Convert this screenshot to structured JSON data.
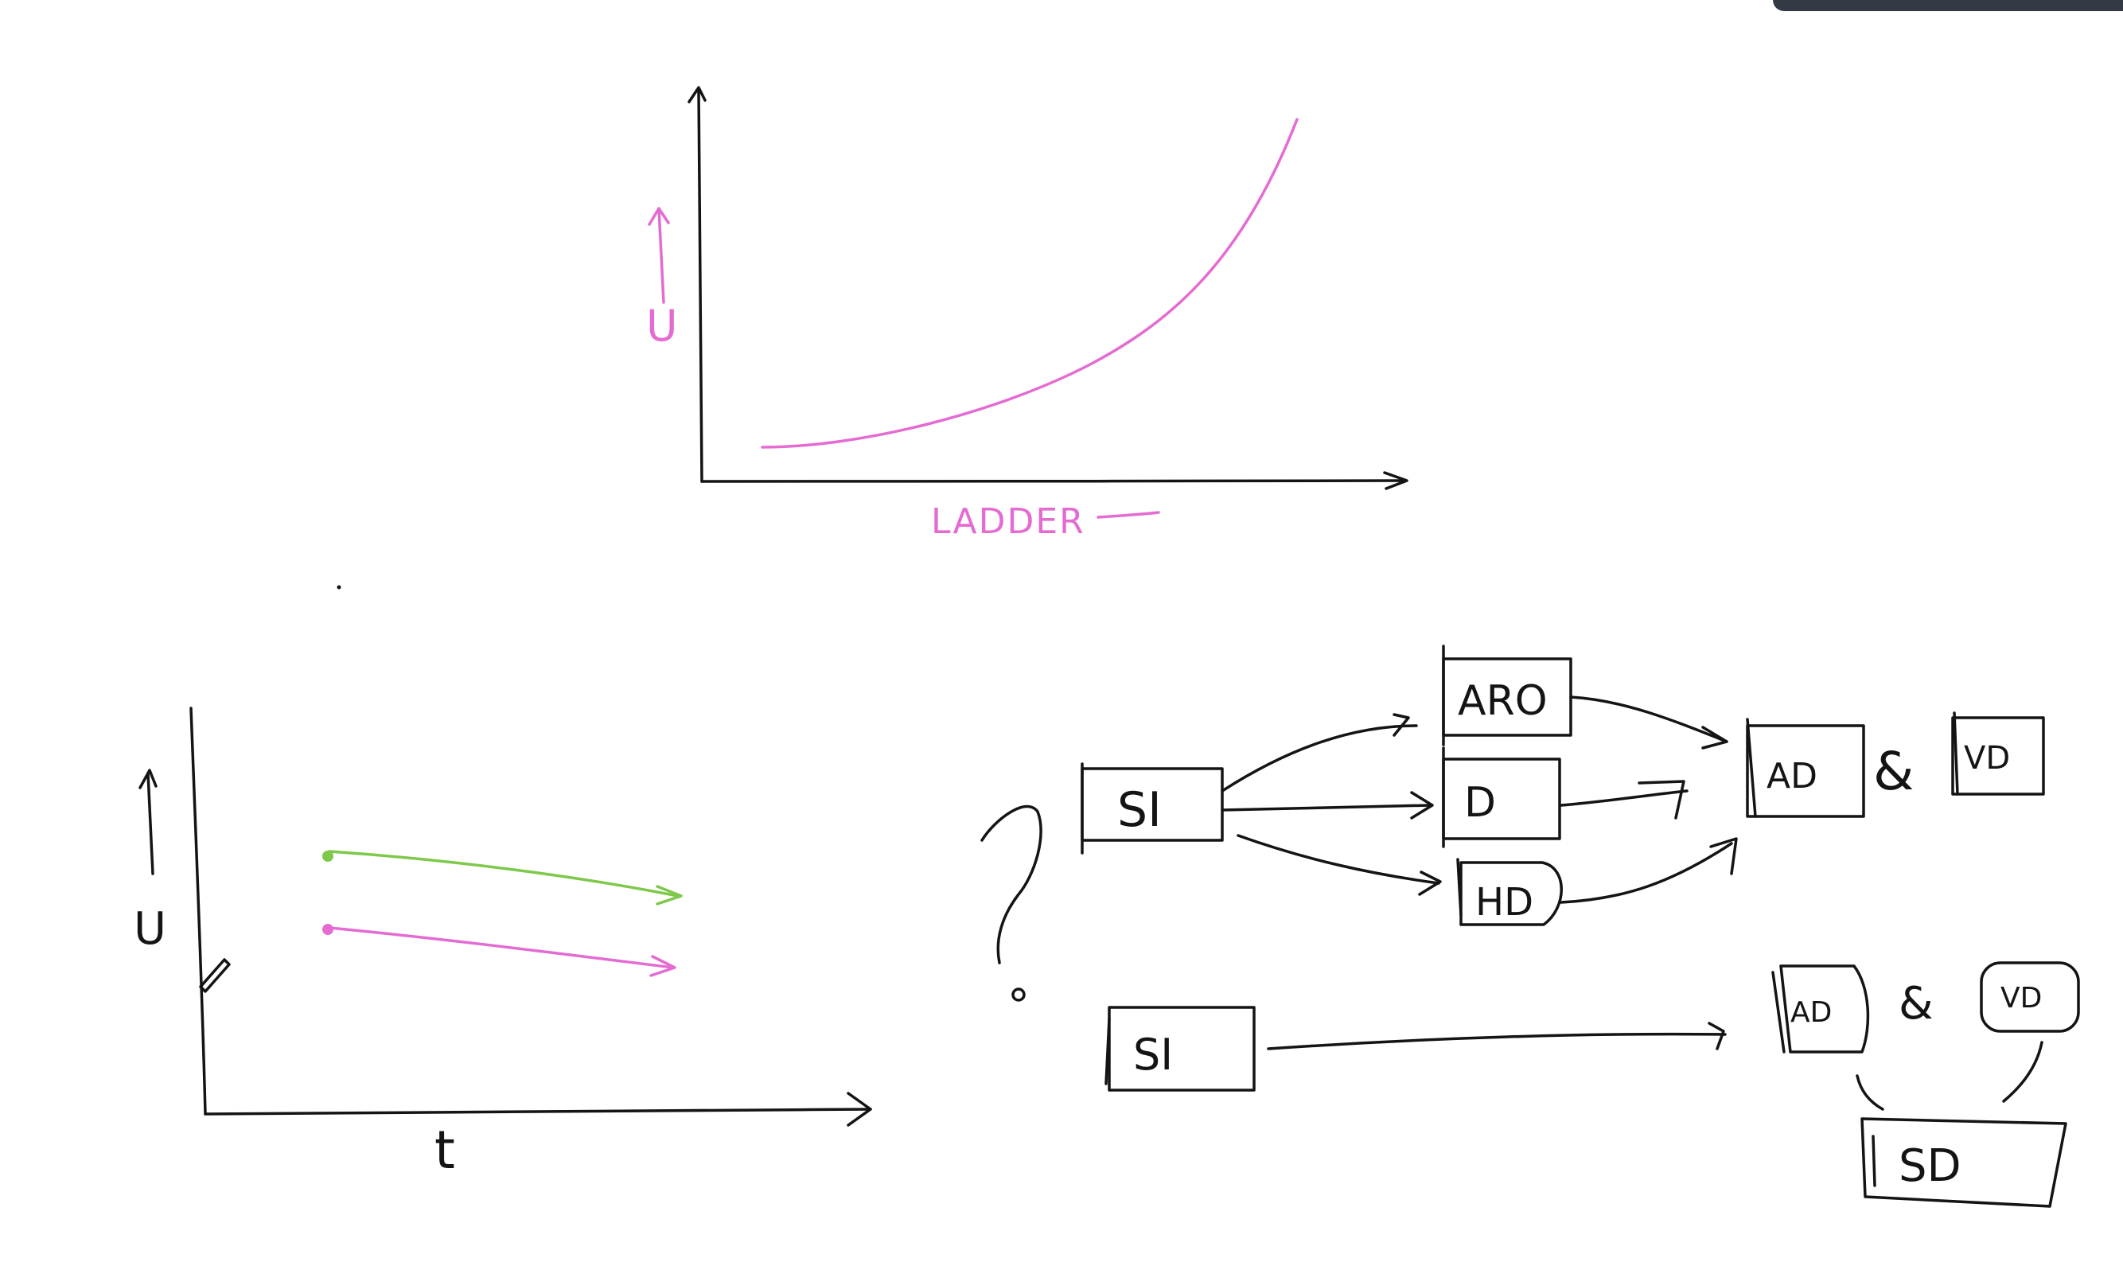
{
  "canvas": {
    "background": "#ffffff",
    "ink_colors": {
      "black": "#141414",
      "pink": "#e46bd2",
      "green": "#7ec84a"
    }
  },
  "graph_top": {
    "y_label": "U",
    "x_label": "LADDER",
    "curve_color": "#e46bd2",
    "curve_shape": "increasing-convex"
  },
  "graph_bottom": {
    "y_label": "U",
    "x_label": "t",
    "lines": [
      {
        "color": "#7ec84a",
        "shape": "slightly-decreasing"
      },
      {
        "color": "#e46bd2",
        "shape": "slightly-decreasing"
      }
    ]
  },
  "flow_top": {
    "source": "SI",
    "middle": [
      "ARO",
      "D",
      "HD"
    ],
    "targets": [
      "AD",
      "&",
      "VD"
    ]
  },
  "flow_bottom": {
    "source": "SI",
    "targets": [
      "AD",
      "&",
      "VD"
    ],
    "merged": "SD"
  },
  "question_mark": "?"
}
